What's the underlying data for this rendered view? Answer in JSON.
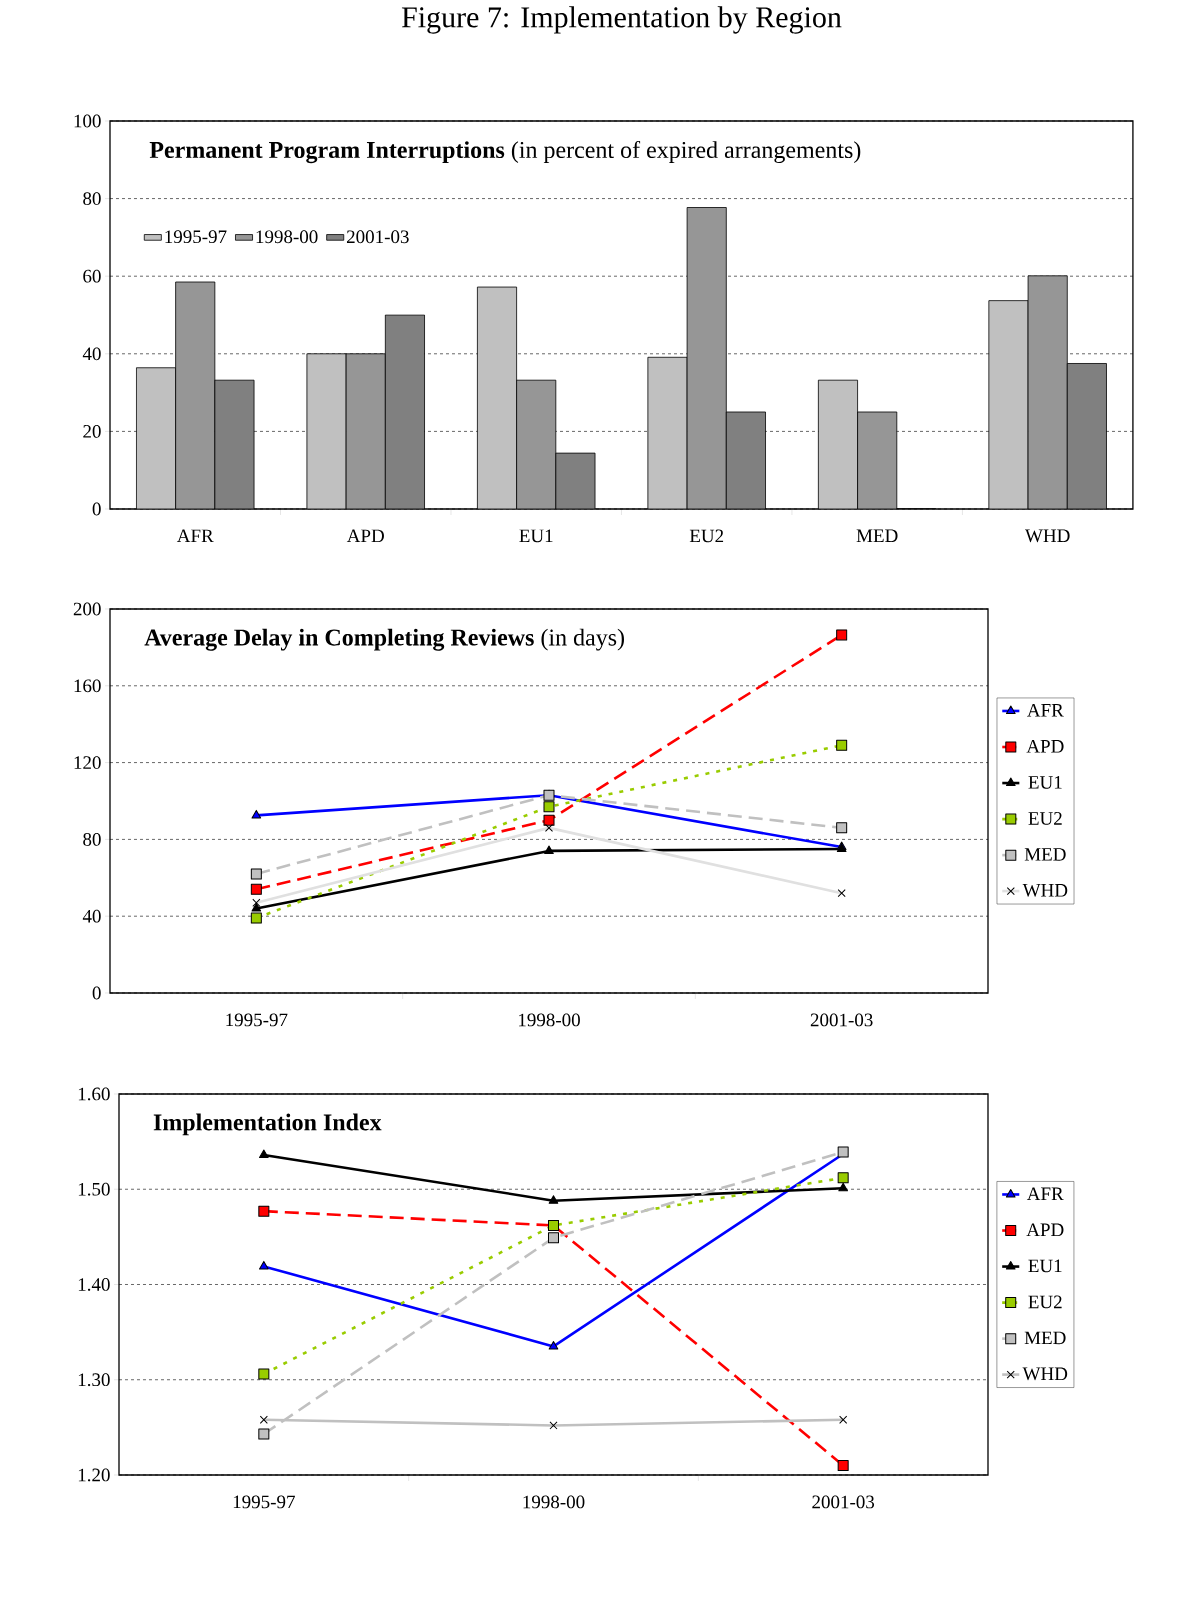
{
  "chart_data": [
    {
      "type": "bar",
      "title": "Figure 7: Implementation by Region",
      "subtitle": "**Permanent Program Interruptions** (in percent of expired arrangements)",
      "categories": [
        "AFR",
        "APD",
        "EU1",
        "EU2",
        "MED",
        "WHD"
      ],
      "series": [
        {
          "name": "1995-97",
          "color": "#c0c0c0",
          "values": [
            36.4,
            40,
            57.2,
            39.1,
            33.2,
            53.7
          ]
        },
        {
          "name": "1998-00",
          "color": "#969696",
          "values": [
            58.5,
            40,
            33.2,
            77.7,
            25,
            60.1
          ]
        },
        {
          "name": "2001-03",
          "color": "#808080",
          "values": [
            33.2,
            50,
            14.4,
            25,
            0,
            37.5
          ]
        }
      ],
      "ylim": [
        0,
        100
      ],
      "yticks": [
        0,
        20,
        40,
        60,
        80,
        100
      ],
      "grid": "y",
      "legend": "top left"
    },
    {
      "type": "line",
      "title": "**Average Delay in Completing Reviews** (in days)",
      "categories": [
        "1995-97",
        "1998-00",
        "2001-03"
      ],
      "series": [
        {
          "name": "AFR",
          "color": "#0000ff",
          "values": [
            92.5,
            103,
            76
          ],
          "marker": "triangle",
          "line_style": "solid"
        },
        {
          "name": "APD",
          "color": "#ff0000",
          "values": [
            54,
            90,
            186.5
          ],
          "marker": "square",
          "line_style": "dashed"
        },
        {
          "name": "EU1",
          "color": "#000000",
          "values": [
            44,
            74,
            75
          ],
          "marker": "triangle",
          "line_style": "solid"
        },
        {
          "name": "EU2",
          "color": "#99cc00",
          "values": [
            39,
            97,
            129
          ],
          "marker": "square",
          "line_style": "dotted"
        },
        {
          "name": "MED",
          "color": "#c0c0c0",
          "values": [
            62,
            103,
            86
          ],
          "marker": "square",
          "line_style": "dashed"
        },
        {
          "name": "WHD",
          "color": "#e0e0e0",
          "values": [
            47,
            86,
            52
          ],
          "marker": "cross",
          "line_style": "solid"
        }
      ],
      "ylim": [
        0,
        200
      ],
      "yticks": [
        0,
        40,
        80,
        120,
        160,
        200
      ],
      "grid": "y",
      "legend": "right"
    },
    {
      "type": "line",
      "title": "**Implementation Index**",
      "categories": [
        "1995-97",
        "1998-00",
        "2001-03"
      ],
      "series": [
        {
          "name": "AFR",
          "color": "#0000ff",
          "values": [
            1.419,
            1.335,
            1.537
          ],
          "marker": "triangle",
          "line_style": "solid"
        },
        {
          "name": "APD",
          "color": "#ff0000",
          "values": [
            1.477,
            1.462,
            1.21
          ],
          "marker": "square",
          "line_style": "dashed"
        },
        {
          "name": "EU1",
          "color": "#000000",
          "values": [
            1.536,
            1.488,
            1.501
          ],
          "marker": "triangle",
          "line_style": "solid"
        },
        {
          "name": "EU2",
          "color": "#99cc00",
          "values": [
            1.306,
            1.462,
            1.512
          ],
          "marker": "square",
          "line_style": "dotted"
        },
        {
          "name": "MED",
          "color": "#c0c0c0",
          "values": [
            1.243,
            1.449,
            1.539
          ],
          "marker": "square",
          "line_style": "dashed"
        },
        {
          "name": "WHD",
          "color": "#c0c0c0",
          "values": [
            1.258,
            1.252,
            1.258
          ],
          "marker": "cross",
          "line_style": "solid"
        }
      ],
      "ylim": [
        1.2,
        1.6
      ],
      "yticks": [
        {
          "value": 1.2,
          "label": "1.20"
        },
        {
          "value": 1.3,
          "label": "1.30"
        },
        {
          "value": 1.4,
          "label": "1.40"
        },
        {
          "value": 1.5,
          "label": "1.50"
        },
        {
          "value": 1.6,
          "label": "1.60"
        }
      ],
      "grid": "y",
      "legend": "right"
    }
  ]
}
